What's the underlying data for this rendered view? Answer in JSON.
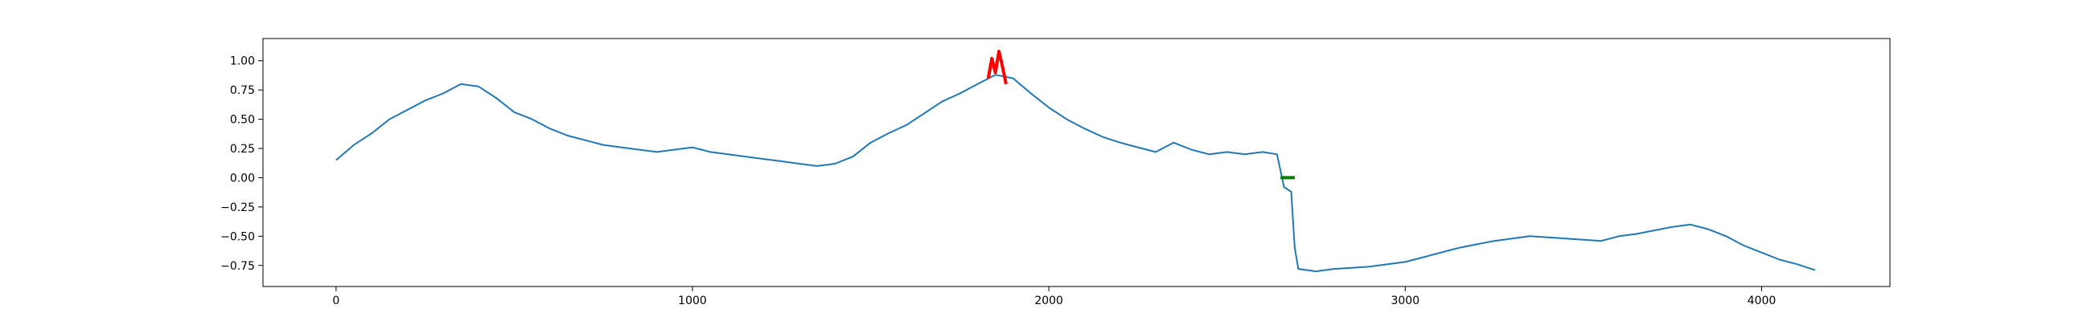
{
  "chart_data": {
    "type": "line",
    "title": "",
    "xlabel": "",
    "ylabel": "",
    "xlim": [
      -205,
      4360
    ],
    "ylim": [
      -0.93,
      1.19
    ],
    "grid": false,
    "legend": "none",
    "x_ticks": [
      0,
      1000,
      2000,
      3000,
      4000
    ],
    "x_tick_labels": [
      "0",
      "1000",
      "2000",
      "3000",
      "4000"
    ],
    "y_ticks": [
      1.0,
      0.75,
      0.5,
      0.25,
      0.0,
      -0.25,
      -0.5,
      -0.75
    ],
    "y_tick_labels": [
      "1.00",
      "0.75",
      "0.50",
      "0.25",
      "0.00",
      "−0.25",
      "−0.50",
      "−0.75"
    ],
    "series": [
      {
        "role": "signal",
        "color": "#1f77b4",
        "x": [
          0,
          50,
          100,
          150,
          200,
          250,
          300,
          350,
          400,
          450,
          500,
          550,
          600,
          650,
          700,
          750,
          800,
          850,
          900,
          950,
          1000,
          1050,
          1100,
          1150,
          1200,
          1250,
          1300,
          1350,
          1400,
          1450,
          1500,
          1550,
          1600,
          1650,
          1700,
          1750,
          1800,
          1850,
          1900,
          1950,
          2000,
          2050,
          2100,
          2150,
          2200,
          2250,
          2300,
          2350,
          2400,
          2450,
          2500,
          2550,
          2600,
          2640,
          2660,
          2680,
          2690,
          2700,
          2750,
          2800,
          2850,
          2900,
          2950,
          3000,
          3050,
          3100,
          3150,
          3200,
          3250,
          3300,
          3350,
          3400,
          3450,
          3500,
          3550,
          3600,
          3650,
          3700,
          3750,
          3800,
          3850,
          3900,
          3950,
          4000,
          4050,
          4100,
          4150
        ],
        "values": [
          0.15,
          0.28,
          0.38,
          0.5,
          0.58,
          0.66,
          0.72,
          0.8,
          0.78,
          0.68,
          0.56,
          0.5,
          0.42,
          0.36,
          0.32,
          0.28,
          0.26,
          0.24,
          0.22,
          0.24,
          0.26,
          0.22,
          0.2,
          0.18,
          0.16,
          0.14,
          0.12,
          0.1,
          0.12,
          0.18,
          0.3,
          0.38,
          0.45,
          0.55,
          0.65,
          0.72,
          0.8,
          0.88,
          0.85,
          0.72,
          0.6,
          0.5,
          0.42,
          0.35,
          0.3,
          0.26,
          0.22,
          0.3,
          0.24,
          0.2,
          0.22,
          0.2,
          0.22,
          0.2,
          -0.08,
          -0.12,
          -0.6,
          -0.78,
          -0.8,
          -0.78,
          -0.77,
          -0.76,
          -0.74,
          -0.72,
          -0.68,
          -0.64,
          -0.6,
          -0.57,
          -0.54,
          -0.52,
          -0.5,
          -0.51,
          -0.52,
          -0.53,
          -0.54,
          -0.5,
          -0.48,
          -0.45,
          -0.42,
          -0.4,
          -0.44,
          -0.5,
          -0.58,
          -0.64,
          -0.7,
          -0.74,
          -0.79
        ]
      },
      {
        "role": "highlight",
        "color": "#ff0000",
        "x": [
          1830,
          1840,
          1850,
          1860,
          1870,
          1880
        ],
        "values": [
          0.85,
          1.02,
          0.9,
          1.08,
          0.95,
          0.8
        ]
      },
      {
        "role": "marker",
        "color": "#008000",
        "x": [
          2650,
          2660,
          2670,
          2680,
          2690
        ],
        "values": [
          0.0,
          0.0,
          0.0,
          0.0,
          0.0
        ]
      }
    ]
  }
}
